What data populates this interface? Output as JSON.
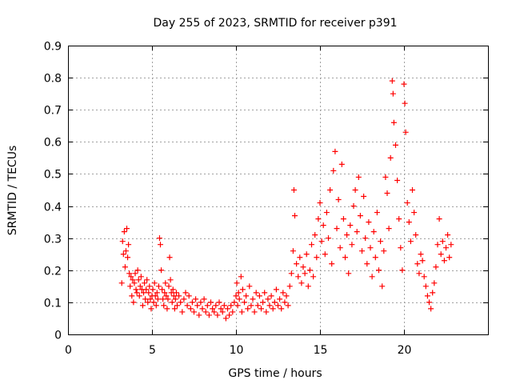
{
  "colors": {
    "series": "#ff0000",
    "grid": "#a0a0a0",
    "axis": "#000000",
    "background": "#ffffff"
  },
  "chart_data": {
    "type": "scatter",
    "title": "Day 255 of 2023, SRMTID for receiver p391",
    "xlabel": "GPS time / hours",
    "ylabel": "SRMTID / TECUs",
    "xlim": [
      0,
      25
    ],
    "ylim": [
      0,
      0.9
    ],
    "xticks": [
      0,
      5,
      10,
      15,
      20
    ],
    "yticks": [
      0,
      0.1,
      0.2,
      0.3,
      0.4,
      0.5,
      0.6,
      0.7,
      0.8,
      0.9
    ],
    "xtick_labels": [
      "0",
      "5",
      "10",
      "15",
      "20"
    ],
    "ytick_labels": [
      "0",
      "0.1",
      "0.2",
      "0.3",
      "0.4",
      "0.5",
      "0.6",
      "0.7",
      "0.8",
      "0.9"
    ],
    "grid": true,
    "marker": "+",
    "series": [
      {
        "name": "SRMTID",
        "points": [
          [
            3.2,
            0.16
          ],
          [
            3.25,
            0.29
          ],
          [
            3.3,
            0.25
          ],
          [
            3.35,
            0.32
          ],
          [
            3.4,
            0.21
          ],
          [
            3.45,
            0.26
          ],
          [
            3.5,
            0.33
          ],
          [
            3.55,
            0.24
          ],
          [
            3.6,
            0.28
          ],
          [
            3.65,
            0.19
          ],
          [
            3.7,
            0.15
          ],
          [
            3.75,
            0.18
          ],
          [
            3.8,
            0.12
          ],
          [
            3.85,
            0.17
          ],
          [
            3.9,
            0.1
          ],
          [
            3.95,
            0.16
          ],
          [
            4.0,
            0.19
          ],
          [
            4.05,
            0.14
          ],
          [
            4.1,
            0.13
          ],
          [
            4.15,
            0.2
          ],
          [
            4.2,
            0.17
          ],
          [
            4.25,
            0.12
          ],
          [
            4.3,
            0.15
          ],
          [
            4.35,
            0.18
          ],
          [
            4.4,
            0.14
          ],
          [
            4.45,
            0.09
          ],
          [
            4.5,
            0.13
          ],
          [
            4.55,
            0.16
          ],
          [
            4.6,
            0.11
          ],
          [
            4.65,
            0.14
          ],
          [
            4.7,
            0.17
          ],
          [
            4.75,
            0.1
          ],
          [
            4.8,
            0.13
          ],
          [
            4.85,
            0.15
          ],
          [
            4.9,
            0.11
          ],
          [
            4.95,
            0.08
          ],
          [
            5.0,
            0.12
          ],
          [
            5.05,
            0.14
          ],
          [
            5.1,
            0.1
          ],
          [
            5.15,
            0.16
          ],
          [
            5.2,
            0.12
          ],
          [
            5.25,
            0.09
          ],
          [
            5.3,
            0.13
          ],
          [
            5.35,
            0.11
          ],
          [
            5.4,
            0.15
          ],
          [
            5.45,
            0.3
          ],
          [
            5.5,
            0.28
          ],
          [
            5.55,
            0.2
          ],
          [
            5.6,
            0.14
          ],
          [
            5.65,
            0.11
          ],
          [
            5.7,
            0.09
          ],
          [
            5.75,
            0.13
          ],
          [
            5.8,
            0.16
          ],
          [
            5.85,
            0.12
          ],
          [
            5.9,
            0.08
          ],
          [
            5.95,
            0.11
          ],
          [
            6.0,
            0.15
          ],
          [
            6.05,
            0.24
          ],
          [
            6.1,
            0.17
          ],
          [
            6.15,
            0.13
          ],
          [
            6.2,
            0.1
          ],
          [
            6.25,
            0.14
          ],
          [
            6.3,
            0.12
          ],
          [
            6.35,
            0.08
          ],
          [
            6.4,
            0.11
          ],
          [
            6.45,
            0.13
          ],
          [
            6.5,
            0.09
          ],
          [
            6.6,
            0.12
          ],
          [
            6.7,
            0.1
          ],
          [
            6.8,
            0.07
          ],
          [
            6.9,
            0.11
          ],
          [
            7.0,
            0.13
          ],
          [
            7.1,
            0.09
          ],
          [
            7.2,
            0.12
          ],
          [
            7.3,
            0.08
          ],
          [
            7.4,
            0.1
          ],
          [
            7.5,
            0.07
          ],
          [
            7.6,
            0.11
          ],
          [
            7.7,
            0.09
          ],
          [
            7.8,
            0.06
          ],
          [
            7.9,
            0.1
          ],
          [
            8.0,
            0.08
          ],
          [
            8.1,
            0.11
          ],
          [
            8.2,
            0.07
          ],
          [
            8.3,
            0.09
          ],
          [
            8.4,
            0.06
          ],
          [
            8.5,
            0.1
          ],
          [
            8.6,
            0.08
          ],
          [
            8.7,
            0.07
          ],
          [
            8.8,
            0.09
          ],
          [
            8.9,
            0.06
          ],
          [
            9.0,
            0.1
          ],
          [
            9.1,
            0.08
          ],
          [
            9.2,
            0.07
          ],
          [
            9.3,
            0.09
          ],
          [
            9.4,
            0.05
          ],
          [
            9.5,
            0.08
          ],
          [
            9.6,
            0.06
          ],
          [
            9.7,
            0.09
          ],
          [
            9.8,
            0.07
          ],
          [
            9.9,
            0.1
          ],
          [
            10.0,
            0.12
          ],
          [
            10.05,
            0.16
          ],
          [
            10.1,
            0.09
          ],
          [
            10.15,
            0.13
          ],
          [
            10.2,
            0.11
          ],
          [
            10.3,
            0.18
          ],
          [
            10.35,
            0.07
          ],
          [
            10.4,
            0.14
          ],
          [
            10.5,
            0.1
          ],
          [
            10.6,
            0.12
          ],
          [
            10.7,
            0.08
          ],
          [
            10.8,
            0.15
          ],
          [
            10.9,
            0.09
          ],
          [
            11.0,
            0.11
          ],
          [
            11.1,
            0.07
          ],
          [
            11.2,
            0.13
          ],
          [
            11.3,
            0.09
          ],
          [
            11.4,
            0.12
          ],
          [
            11.5,
            0.08
          ],
          [
            11.6,
            0.1
          ],
          [
            11.7,
            0.13
          ],
          [
            11.8,
            0.07
          ],
          [
            11.9,
            0.11
          ],
          [
            12.0,
            0.09
          ],
          [
            12.1,
            0.12
          ],
          [
            12.2,
            0.08
          ],
          [
            12.3,
            0.1
          ],
          [
            12.4,
            0.14
          ],
          [
            12.5,
            0.09
          ],
          [
            12.6,
            0.11
          ],
          [
            12.7,
            0.08
          ],
          [
            12.8,
            0.13
          ],
          [
            12.9,
            0.1
          ],
          [
            13.0,
            0.12
          ],
          [
            13.1,
            0.09
          ],
          [
            13.2,
            0.15
          ],
          [
            13.3,
            0.19
          ],
          [
            13.4,
            0.26
          ],
          [
            13.45,
            0.45
          ],
          [
            13.5,
            0.37
          ],
          [
            13.6,
            0.22
          ],
          [
            13.7,
            0.18
          ],
          [
            13.8,
            0.24
          ],
          [
            13.9,
            0.16
          ],
          [
            14.0,
            0.21
          ],
          [
            14.1,
            0.19
          ],
          [
            14.2,
            0.25
          ],
          [
            14.3,
            0.15
          ],
          [
            14.4,
            0.2
          ],
          [
            14.5,
            0.28
          ],
          [
            14.6,
            0.18
          ],
          [
            14.7,
            0.31
          ],
          [
            14.8,
            0.24
          ],
          [
            14.9,
            0.36
          ],
          [
            15.0,
            0.41
          ],
          [
            15.1,
            0.29
          ],
          [
            15.2,
            0.34
          ],
          [
            15.3,
            0.25
          ],
          [
            15.4,
            0.38
          ],
          [
            15.5,
            0.3
          ],
          [
            15.6,
            0.45
          ],
          [
            15.7,
            0.22
          ],
          [
            15.8,
            0.51
          ],
          [
            15.9,
            0.57
          ],
          [
            16.0,
            0.33
          ],
          [
            16.1,
            0.42
          ],
          [
            16.2,
            0.27
          ],
          [
            16.3,
            0.53
          ],
          [
            16.4,
            0.36
          ],
          [
            16.5,
            0.24
          ],
          [
            16.6,
            0.31
          ],
          [
            16.7,
            0.19
          ],
          [
            16.8,
            0.34
          ],
          [
            16.9,
            0.28
          ],
          [
            17.0,
            0.4
          ],
          [
            17.1,
            0.45
          ],
          [
            17.2,
            0.32
          ],
          [
            17.3,
            0.49
          ],
          [
            17.4,
            0.37
          ],
          [
            17.5,
            0.26
          ],
          [
            17.6,
            0.43
          ],
          [
            17.7,
            0.3
          ],
          [
            17.8,
            0.22
          ],
          [
            17.9,
            0.35
          ],
          [
            18.0,
            0.27
          ],
          [
            18.1,
            0.18
          ],
          [
            18.2,
            0.32
          ],
          [
            18.3,
            0.24
          ],
          [
            18.4,
            0.38
          ],
          [
            18.5,
            0.2
          ],
          [
            18.6,
            0.29
          ],
          [
            18.7,
            0.15
          ],
          [
            18.8,
            0.26
          ],
          [
            18.9,
            0.49
          ],
          [
            19.0,
            0.44
          ],
          [
            19.1,
            0.33
          ],
          [
            19.2,
            0.55
          ],
          [
            19.3,
            0.79
          ],
          [
            19.35,
            0.75
          ],
          [
            19.4,
            0.66
          ],
          [
            19.5,
            0.59
          ],
          [
            19.6,
            0.48
          ],
          [
            19.7,
            0.36
          ],
          [
            19.8,
            0.27
          ],
          [
            19.9,
            0.2
          ],
          [
            20.0,
            0.78
          ],
          [
            20.05,
            0.72
          ],
          [
            20.1,
            0.63
          ],
          [
            20.2,
            0.41
          ],
          [
            20.3,
            0.35
          ],
          [
            20.4,
            0.29
          ],
          [
            20.5,
            0.45
          ],
          [
            20.6,
            0.38
          ],
          [
            20.7,
            0.31
          ],
          [
            20.8,
            0.22
          ],
          [
            20.9,
            0.19
          ],
          [
            21.0,
            0.25
          ],
          [
            21.1,
            0.23
          ],
          [
            21.2,
            0.18
          ],
          [
            21.3,
            0.15
          ],
          [
            21.4,
            0.12
          ],
          [
            21.5,
            0.1
          ],
          [
            21.6,
            0.08
          ],
          [
            21.7,
            0.13
          ],
          [
            21.8,
            0.16
          ],
          [
            21.9,
            0.21
          ],
          [
            22.0,
            0.28
          ],
          [
            22.1,
            0.36
          ],
          [
            22.2,
            0.25
          ],
          [
            22.3,
            0.29
          ],
          [
            22.4,
            0.23
          ],
          [
            22.5,
            0.27
          ],
          [
            22.6,
            0.31
          ],
          [
            22.7,
            0.24
          ],
          [
            22.8,
            0.28
          ]
        ]
      }
    ]
  }
}
